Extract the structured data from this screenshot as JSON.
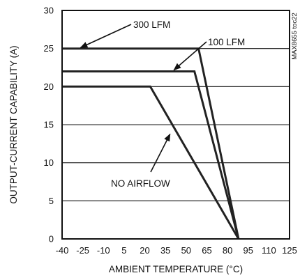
{
  "chart_data": {
    "type": "line",
    "xlabel": "AMBIENT TEMPERATURE (°C)",
    "ylabel": "OUTPUT-CURRENT CAPABILITY (A)",
    "xlim": [
      -40,
      125
    ],
    "ylim": [
      0,
      30
    ],
    "x_ticks": [
      -40,
      -25,
      -10,
      5,
      20,
      35,
      50,
      65,
      80,
      95,
      110,
      125
    ],
    "x_tick_labels": [
      "-40",
      "-25",
      "-10",
      "5",
      "20",
      "35",
      "50",
      "65",
      "80",
      "95",
      "110",
      "125"
    ],
    "y_ticks": [
      0,
      5,
      10,
      15,
      20,
      25,
      30
    ],
    "y_tick_labels": [
      "0",
      "5",
      "10",
      "15",
      "20",
      "25",
      "30"
    ],
    "grid": "horizontal",
    "series": [
      {
        "name": "300 LFM",
        "x": [
          -40,
          59,
          88
        ],
        "y": [
          25,
          25,
          0
        ]
      },
      {
        "name": "100 LFM",
        "x": [
          -40,
          56,
          88
        ],
        "y": [
          22,
          22,
          0
        ]
      },
      {
        "name": "NO AIRFLOW",
        "x": [
          -40,
          24,
          88
        ],
        "y": [
          20,
          20,
          0
        ]
      }
    ],
    "annotations": [
      {
        "text": "300 LFM",
        "series": "300 LFM",
        "arrow_to": [
          -28,
          25
        ]
      },
      {
        "text": "100 LFM",
        "series": "100 LFM",
        "arrow_to": [
          40,
          22
        ]
      },
      {
        "text": "NO AIRFLOW",
        "series": "NO AIRFLOW",
        "arrow_to": [
          39,
          14
        ]
      }
    ],
    "side_note": "MAX8655 toc22"
  }
}
